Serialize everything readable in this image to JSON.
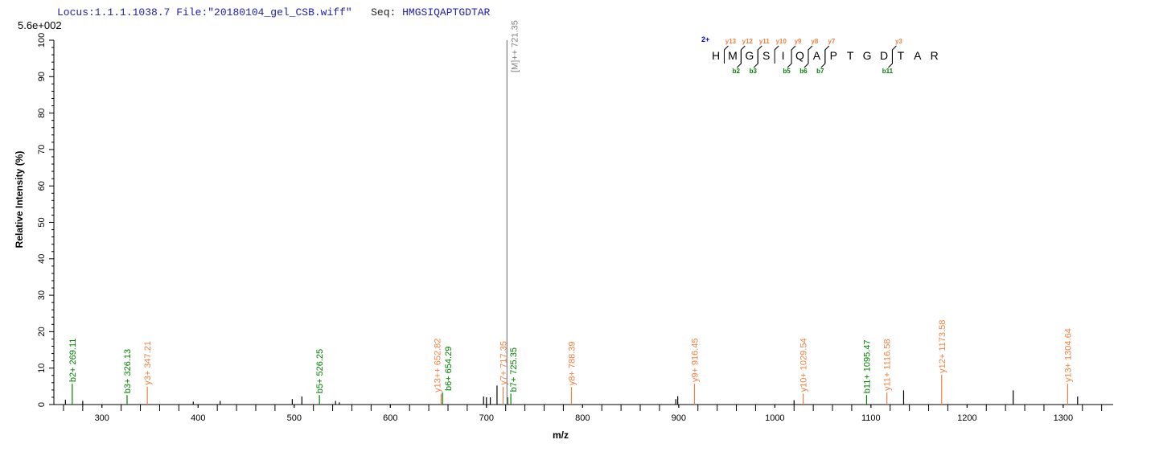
{
  "header": {
    "locus": "Locus:1.1.1.1038.7",
    "file": "File:\"20180104_gel_CSB.wiff\"",
    "seq_label": "Seq:",
    "seq": "HMGSIQAPTGDTAR"
  },
  "max_intensity": "5.6e+002",
  "colors": {
    "b": "#008000",
    "y": "#f08040",
    "precursor": "#808080",
    "other": "#000000",
    "charge": "#0000cc"
  },
  "sequence_annotation": {
    "charge": "2+",
    "residues": [
      "H",
      "M",
      "G",
      "S",
      "I",
      "Q",
      "A",
      "P",
      "T",
      "G",
      "D",
      "T",
      "A",
      "R"
    ],
    "y_breaks": [
      {
        "after": 1,
        "label": "y13"
      },
      {
        "after": 2,
        "label": "y12"
      },
      {
        "after": 3,
        "label": "y11"
      },
      {
        "after": 4,
        "label": "y10"
      },
      {
        "after": 5,
        "label": "y9"
      },
      {
        "after": 6,
        "label": "y8"
      },
      {
        "after": 7,
        "label": "y7"
      },
      {
        "after": 11,
        "label": "y3"
      }
    ],
    "b_breaks": [
      {
        "after": 2,
        "label": "b2"
      },
      {
        "after": 3,
        "label": "b3"
      },
      {
        "after": 5,
        "label": "b5"
      },
      {
        "after": 6,
        "label": "b6"
      },
      {
        "after": 7,
        "label": "b7"
      },
      {
        "after": 11,
        "label": "b11"
      }
    ]
  },
  "chart_data": {
    "type": "bar",
    "xlabel": "m/z",
    "ylabel": "Relative   Intensity (%)",
    "xlim": [
      250,
      1352
    ],
    "ylim": [
      0,
      100
    ],
    "xticks": [
      300,
      400,
      500,
      600,
      700,
      800,
      900,
      1000,
      1100,
      1200,
      1300
    ],
    "yticks": [
      0,
      10,
      20,
      30,
      40,
      50,
      60,
      70,
      80,
      90,
      100
    ],
    "labeled_peaks": [
      {
        "mz": 269.11,
        "y": 5.7,
        "type": "b",
        "label": "b2+ 269.11"
      },
      {
        "mz": 326.13,
        "y": 2.6,
        "type": "b",
        "label": "b3+ 326.13"
      },
      {
        "mz": 347.21,
        "y": 4.9,
        "type": "y",
        "label": "y3+ 347.21"
      },
      {
        "mz": 526.25,
        "y": 2.6,
        "type": "b",
        "label": "b5+ 526.25"
      },
      {
        "mz": 652.82,
        "y": 2.9,
        "type": "y",
        "label": "y13++ 652.82"
      },
      {
        "mz": 654.29,
        "y": 3.3,
        "type": "b",
        "label": "b6+ 654.29"
      },
      {
        "mz": 717.35,
        "y": 4.9,
        "type": "y",
        "label": "y7+ 717.35"
      },
      {
        "mz": 721.35,
        "y": 100,
        "type": "precursor",
        "label": "[M]++ 721.35"
      },
      {
        "mz": 725.35,
        "y": 3.0,
        "type": "b",
        "label": "b7+ 725.35"
      },
      {
        "mz": 788.39,
        "y": 4.8,
        "type": "y",
        "label": "y8+ 788.39"
      },
      {
        "mz": 916.45,
        "y": 5.7,
        "type": "y",
        "label": "y9+ 916.45"
      },
      {
        "mz": 1029.54,
        "y": 3.0,
        "type": "y",
        "label": "y10+ 1029.54"
      },
      {
        "mz": 1095.47,
        "y": 2.6,
        "type": "b",
        "label": "b11+ 1095.47"
      },
      {
        "mz": 1116.58,
        "y": 3.3,
        "type": "y",
        "label": "y11+ 1116.58"
      },
      {
        "mz": 1173.58,
        "y": 8.2,
        "type": "y",
        "label": "y12+ 1173.58"
      },
      {
        "mz": 1304.64,
        "y": 5.7,
        "type": "y",
        "label": "y13+ 1304.64"
      }
    ],
    "other_peaks": [
      {
        "mz": 262,
        "y": 1.3
      },
      {
        "mz": 280,
        "y": 1.0
      },
      {
        "mz": 395,
        "y": 0.8
      },
      {
        "mz": 423,
        "y": 1.0
      },
      {
        "mz": 498,
        "y": 1.5
      },
      {
        "mz": 508,
        "y": 2.2
      },
      {
        "mz": 543,
        "y": 1.0
      },
      {
        "mz": 547,
        "y": 0.6
      },
      {
        "mz": 697,
        "y": 2.2
      },
      {
        "mz": 700,
        "y": 2.0
      },
      {
        "mz": 704,
        "y": 2.0
      },
      {
        "mz": 711,
        "y": 5.2
      },
      {
        "mz": 722,
        "y": 2.0
      },
      {
        "mz": 897,
        "y": 1.5
      },
      {
        "mz": 899,
        "y": 2.3
      },
      {
        "mz": 1020,
        "y": 1.2
      },
      {
        "mz": 1134,
        "y": 3.9
      },
      {
        "mz": 1248,
        "y": 3.9
      },
      {
        "mz": 1315,
        "y": 2.2
      }
    ]
  }
}
